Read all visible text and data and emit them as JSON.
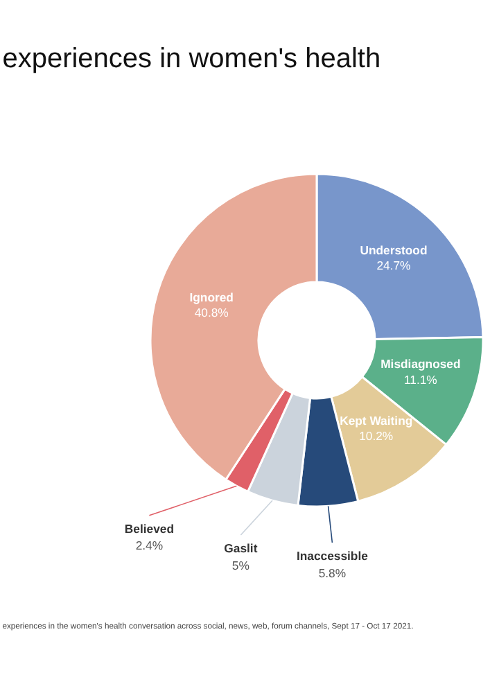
{
  "chart_data": {
    "type": "donut",
    "title": "experiences in women's health",
    "categories": [
      "Understood",
      "Misdiagnosed",
      "Kept Waiting",
      "Inaccessible",
      "Gaslit",
      "Believed",
      "Ignored"
    ],
    "values": [
      24.7,
      11.1,
      10.2,
      5.8,
      5,
      2.4,
      40.8
    ],
    "value_labels": [
      "24.7%",
      "11.1%",
      "10.2%",
      "5.8%",
      "5%",
      "2.4%",
      "40.8%"
    ],
    "colors": [
      "#7896cb",
      "#5bb08a",
      "#e3cb98",
      "#264a7a",
      "#cbd3dc",
      "#e06068",
      "#e8aa98"
    ],
    "annotations": [
      "experiences in the women's health conversation across social, news, web, forum channels, Sept 17 - Oct 17 2021."
    ]
  }
}
